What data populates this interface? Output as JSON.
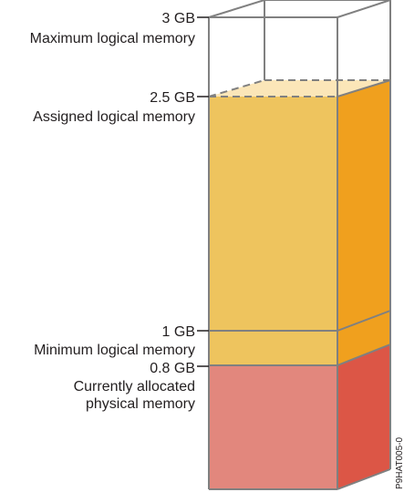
{
  "figure_id": "P9HAT005-0",
  "colors": {
    "outline": "#808080",
    "assigned_front": "#eec45e",
    "assigned_side": "#f0a01e",
    "assigned_top": "#fbe6b8",
    "physical_front": "#e2877d",
    "physical_side": "#dc5646",
    "label_text": "#231f20"
  },
  "levels": [
    {
      "id": "max",
      "value": "3 GB",
      "description_lines": [
        "Maximum logical memory"
      ],
      "gb": 3.0
    },
    {
      "id": "assigned",
      "value": "2.5 GB",
      "description_lines": [
        "Assigned logical memory"
      ],
      "gb": 2.5
    },
    {
      "id": "min",
      "value": "1 GB",
      "description_lines": [
        "Minimum logical memory"
      ],
      "gb": 1.0
    },
    {
      "id": "physical",
      "value": "0.8 GB",
      "description_lines": [
        "Currently allocated",
        "physical memory"
      ],
      "gb": 0.8
    }
  ]
}
